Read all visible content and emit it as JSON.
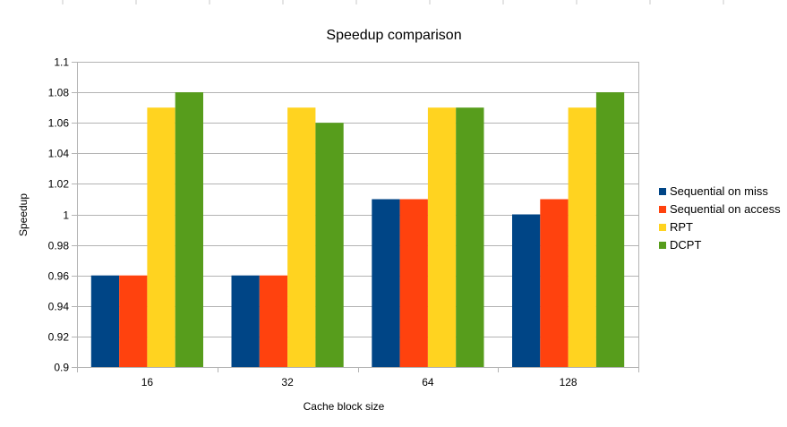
{
  "chart_data": {
    "type": "bar",
    "title": "Speedup comparison",
    "xlabel": "Cache block size",
    "ylabel": "Speedup",
    "categories": [
      "16",
      "32",
      "64",
      "128"
    ],
    "series": [
      {
        "name": "Sequential on miss",
        "color": "#004586",
        "values": [
          0.96,
          0.96,
          1.01,
          1.0
        ]
      },
      {
        "name": "Sequential on access",
        "color": "#ff420e",
        "values": [
          0.96,
          0.96,
          1.01,
          1.01
        ]
      },
      {
        "name": "RPT",
        "color": "#ffd320",
        "values": [
          1.07,
          1.07,
          1.07,
          1.07
        ]
      },
      {
        "name": "DCPT",
        "color": "#579d1c",
        "values": [
          1.08,
          1.06,
          1.07,
          1.08
        ]
      }
    ],
    "ylim": [
      0.9,
      1.1
    ],
    "yticks": [
      0.9,
      0.92,
      0.94,
      0.96,
      0.98,
      1,
      1.02,
      1.04,
      1.06,
      1.08,
      1.1
    ],
    "ytick_labels": [
      "0.9",
      "0.92",
      "0.94",
      "0.96",
      "0.98",
      "1",
      "1.02",
      "1.04",
      "1.06",
      "1.08",
      "1.1"
    ],
    "grid": true,
    "legend_position": "right"
  }
}
